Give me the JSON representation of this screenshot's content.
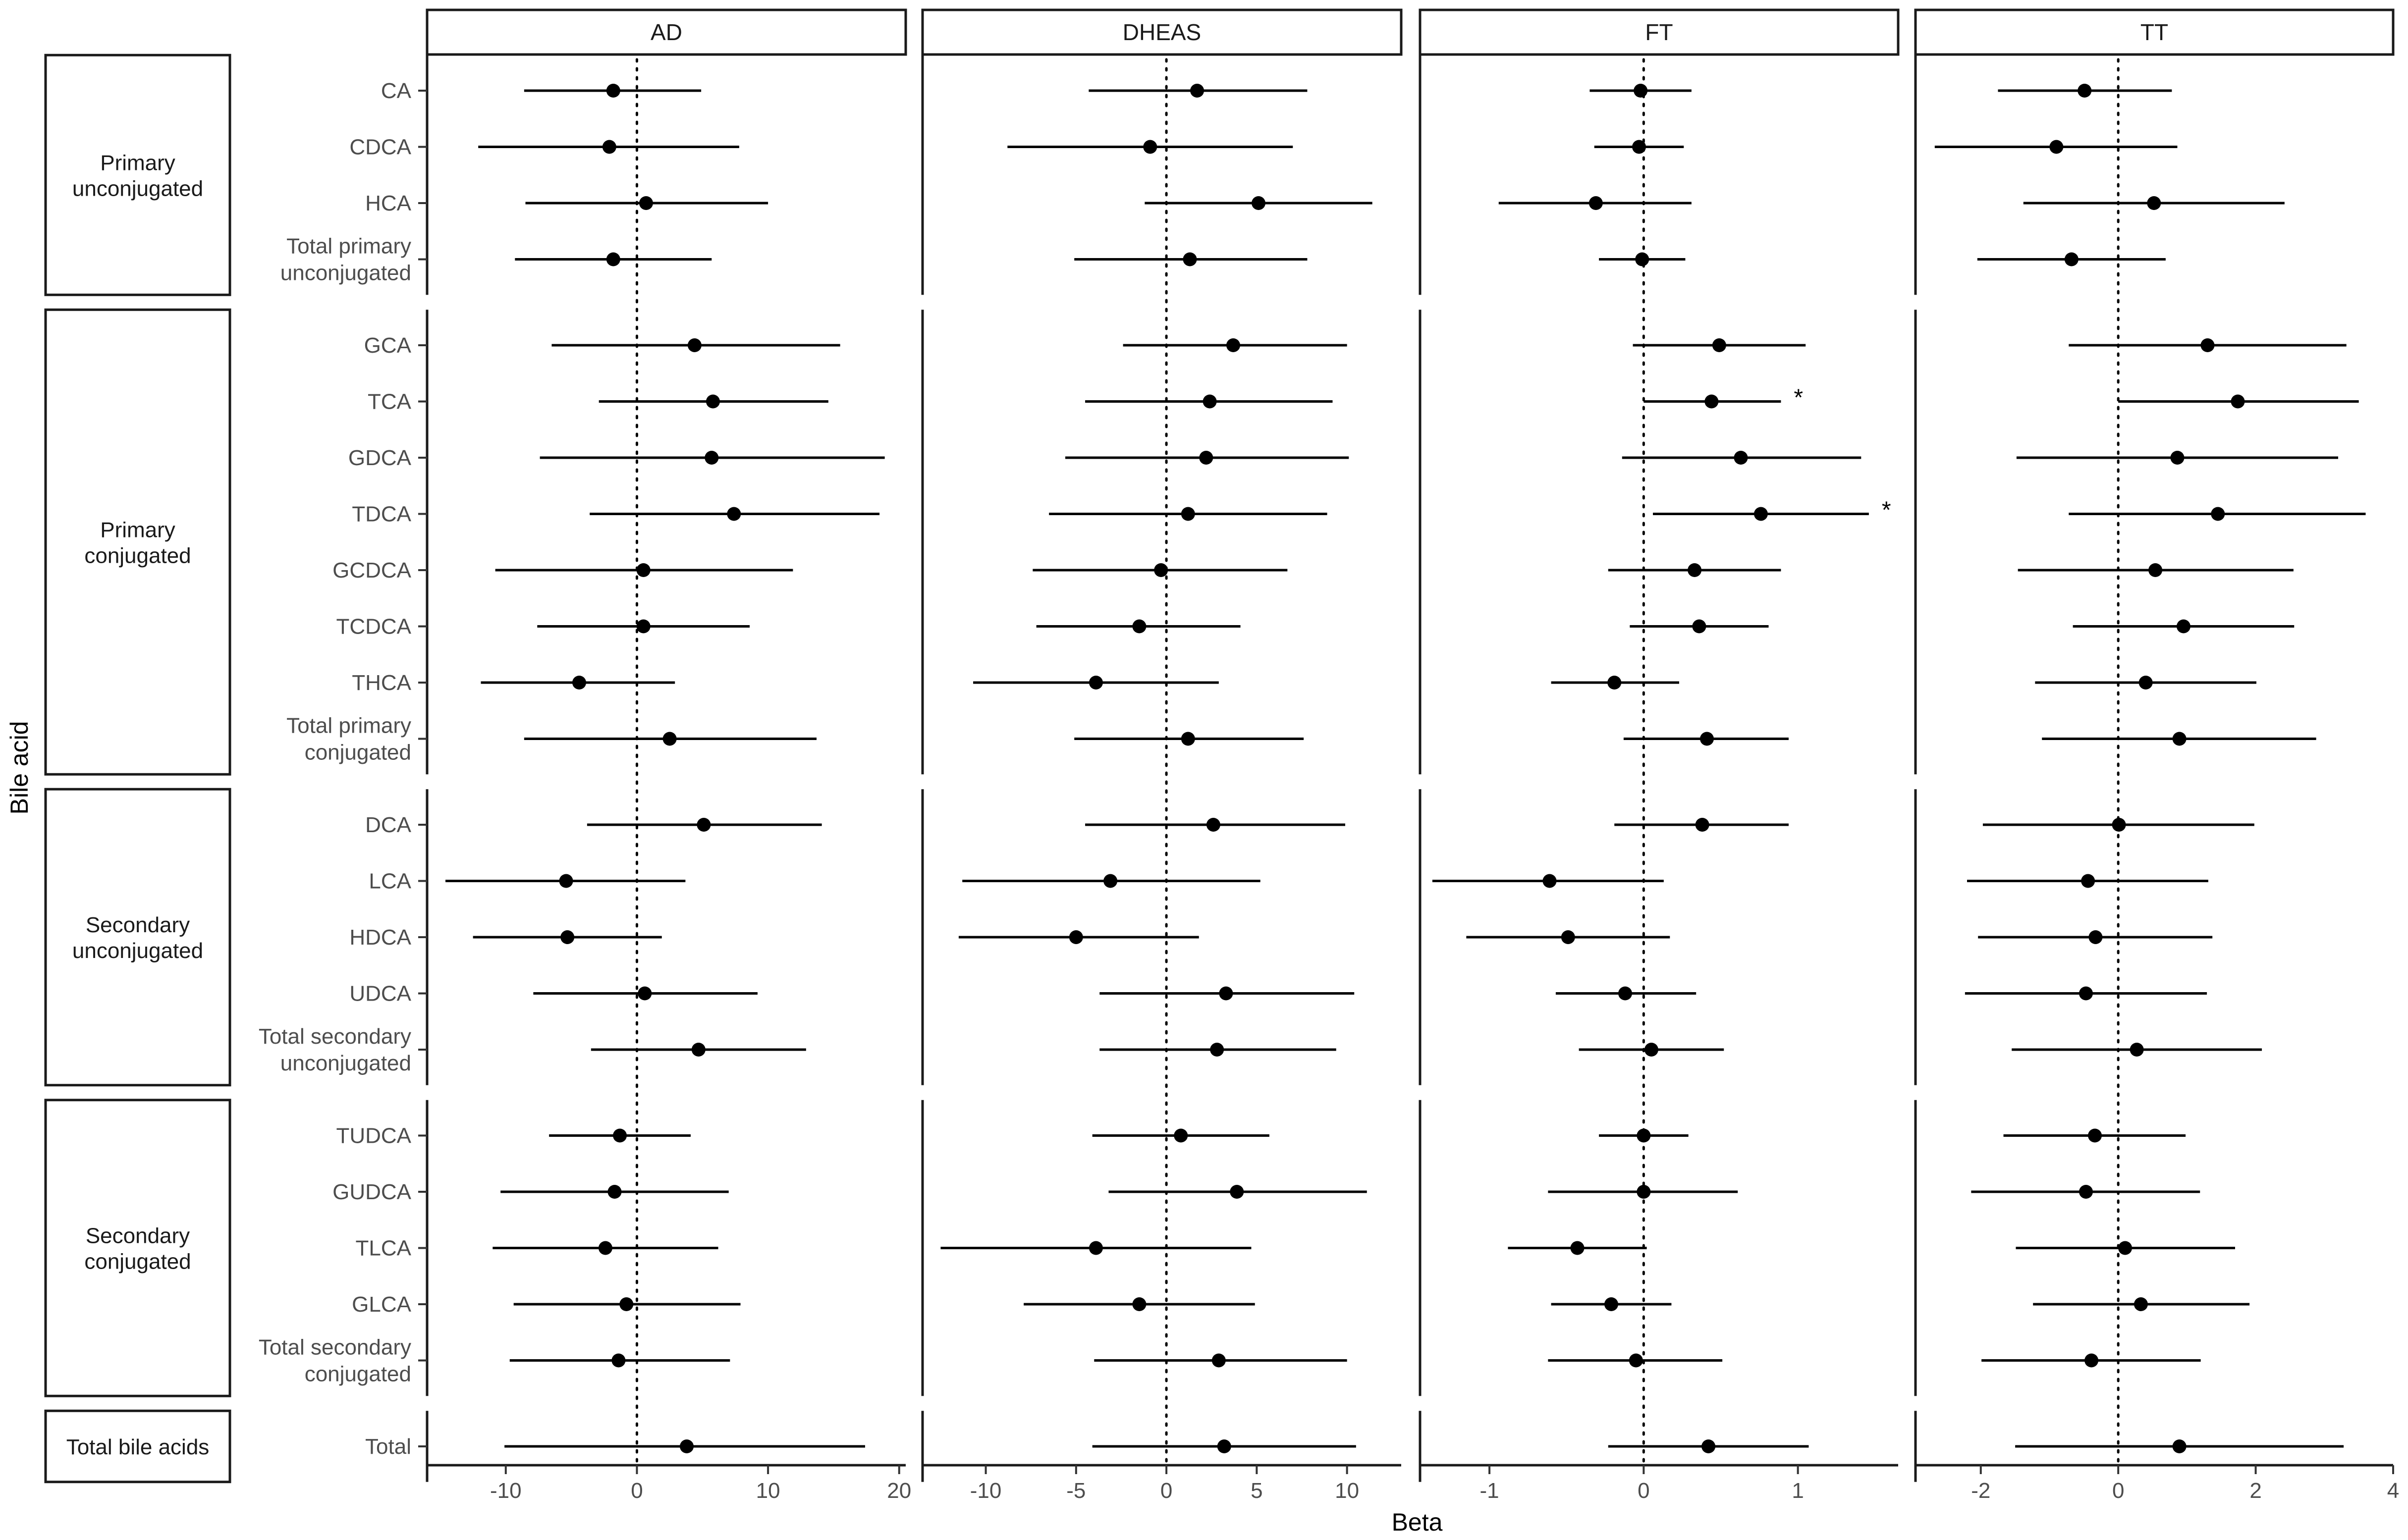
{
  "chart_data": {
    "type": "forest",
    "xlabel": "Beta",
    "ylabel": "Bile acid",
    "grid": false,
    "reference_line": 0,
    "groups": [
      {
        "label": "Primary\nunconjugated",
        "rows": [
          "CA",
          "CDCA",
          "HCA",
          "Total primary\nunconjugated"
        ]
      },
      {
        "label": "Primary\nconjugated",
        "rows": [
          "GCA",
          "TCA",
          "GDCA",
          "TDCA",
          "GCDCA",
          "TCDCA",
          "THCA",
          "Total primary\nconjugated"
        ]
      },
      {
        "label": "Secondary\nunconjugated",
        "rows": [
          "DCA",
          "LCA",
          "HDCA",
          "UDCA",
          "Total secondary\nunconjugated"
        ]
      },
      {
        "label": "Secondary\nconjugated",
        "rows": [
          "TUDCA",
          "GUDCA",
          "TLCA",
          "GLCA",
          "Total secondary\nconjugated"
        ]
      },
      {
        "label": "Total bile acids",
        "rows": [
          "Total"
        ]
      }
    ],
    "panels": [
      {
        "name": "AD",
        "xlim": [
          -16,
          20.5
        ],
        "ticks": [
          -10,
          0,
          10,
          20
        ],
        "tick_labels": [
          "-10",
          "0",
          "10",
          "20"
        ],
        "points": [
          {
            "est": -1.8,
            "lo": -8.6,
            "hi": 4.9,
            "sig": ""
          },
          {
            "est": -2.1,
            "lo": -12.1,
            "hi": 7.8,
            "sig": ""
          },
          {
            "est": 0.7,
            "lo": -8.5,
            "hi": 10.0,
            "sig": ""
          },
          {
            "est": -1.8,
            "lo": -9.3,
            "hi": 5.7,
            "sig": ""
          },
          {
            "est": 4.4,
            "lo": -6.5,
            "hi": 15.5,
            "sig": ""
          },
          {
            "est": 5.8,
            "lo": -2.9,
            "hi": 14.6,
            "sig": ""
          },
          {
            "est": 5.7,
            "lo": -7.4,
            "hi": 18.9,
            "sig": ""
          },
          {
            "est": 7.4,
            "lo": -3.6,
            "hi": 18.5,
            "sig": ""
          },
          {
            "est": 0.5,
            "lo": -10.8,
            "hi": 11.9,
            "sig": ""
          },
          {
            "est": 0.5,
            "lo": -7.6,
            "hi": 8.6,
            "sig": ""
          },
          {
            "est": -4.4,
            "lo": -11.9,
            "hi": 2.9,
            "sig": ""
          },
          {
            "est": 2.5,
            "lo": -8.6,
            "hi": 13.7,
            "sig": ""
          },
          {
            "est": 5.1,
            "lo": -3.8,
            "hi": 14.1,
            "sig": ""
          },
          {
            "est": -5.4,
            "lo": -14.6,
            "hi": 3.7,
            "sig": ""
          },
          {
            "est": -5.3,
            "lo": -12.5,
            "hi": 1.9,
            "sig": ""
          },
          {
            "est": 0.6,
            "lo": -7.9,
            "hi": 9.2,
            "sig": ""
          },
          {
            "est": 4.7,
            "lo": -3.5,
            "hi": 12.9,
            "sig": ""
          },
          {
            "est": -1.3,
            "lo": -6.7,
            "hi": 4.1,
            "sig": ""
          },
          {
            "est": -1.7,
            "lo": -10.4,
            "hi": 7.0,
            "sig": ""
          },
          {
            "est": -2.4,
            "lo": -11.0,
            "hi": 6.2,
            "sig": ""
          },
          {
            "est": -0.8,
            "lo": -9.4,
            "hi": 7.9,
            "sig": ""
          },
          {
            "est": -1.4,
            "lo": -9.7,
            "hi": 7.1,
            "sig": ""
          },
          {
            "est": 3.8,
            "lo": -10.1,
            "hi": 17.4,
            "sig": ""
          }
        ]
      },
      {
        "name": "DHEAS",
        "xlim": [
          -13.5,
          13
        ],
        "ticks": [
          -10,
          -5,
          0,
          5,
          10
        ],
        "tick_labels": [
          "-10",
          "-5",
          "0",
          "5",
          "10"
        ],
        "points": [
          {
            "est": 1.7,
            "lo": -4.3,
            "hi": 7.8,
            "sig": ""
          },
          {
            "est": -0.9,
            "lo": -8.8,
            "hi": 7.0,
            "sig": ""
          },
          {
            "est": 5.1,
            "lo": -1.2,
            "hi": 11.4,
            "sig": ""
          },
          {
            "est": 1.3,
            "lo": -5.1,
            "hi": 7.8,
            "sig": ""
          },
          {
            "est": 3.7,
            "lo": -2.4,
            "hi": 10.0,
            "sig": ""
          },
          {
            "est": 2.4,
            "lo": -4.5,
            "hi": 9.2,
            "sig": ""
          },
          {
            "est": 2.2,
            "lo": -5.6,
            "hi": 10.1,
            "sig": ""
          },
          {
            "est": 1.2,
            "lo": -6.5,
            "hi": 8.9,
            "sig": ""
          },
          {
            "est": -0.3,
            "lo": -7.4,
            "hi": 6.7,
            "sig": ""
          },
          {
            "est": -1.5,
            "lo": -7.2,
            "hi": 4.1,
            "sig": ""
          },
          {
            "est": -3.9,
            "lo": -10.7,
            "hi": 2.9,
            "sig": ""
          },
          {
            "est": 1.2,
            "lo": -5.1,
            "hi": 7.6,
            "sig": ""
          },
          {
            "est": 2.6,
            "lo": -4.5,
            "hi": 9.9,
            "sig": ""
          },
          {
            "est": -3.1,
            "lo": -11.3,
            "hi": 5.2,
            "sig": ""
          },
          {
            "est": -5.0,
            "lo": -11.5,
            "hi": 1.8,
            "sig": ""
          },
          {
            "est": 3.3,
            "lo": -3.7,
            "hi": 10.4,
            "sig": ""
          },
          {
            "est": 2.8,
            "lo": -3.7,
            "hi": 9.4,
            "sig": ""
          },
          {
            "est": 0.8,
            "lo": -4.1,
            "hi": 5.7,
            "sig": ""
          },
          {
            "est": 3.9,
            "lo": -3.2,
            "hi": 11.1,
            "sig": ""
          },
          {
            "est": -3.9,
            "lo": -12.5,
            "hi": 4.7,
            "sig": ""
          },
          {
            "est": -1.5,
            "lo": -7.9,
            "hi": 4.9,
            "sig": ""
          },
          {
            "est": 2.9,
            "lo": -4.0,
            "hi": 10.0,
            "sig": ""
          },
          {
            "est": 3.2,
            "lo": -4.1,
            "hi": 10.5,
            "sig": ""
          }
        ]
      },
      {
        "name": "FT",
        "xlim": [
          -1.45,
          1.65
        ],
        "ticks": [
          -1,
          0,
          1
        ],
        "tick_labels": [
          "-1",
          "0",
          "1"
        ],
        "points": [
          {
            "est": -0.02,
            "lo": -0.35,
            "hi": 0.31,
            "sig": ""
          },
          {
            "est": -0.03,
            "lo": -0.32,
            "hi": 0.26,
            "sig": ""
          },
          {
            "est": -0.31,
            "lo": -0.94,
            "hi": 0.31,
            "sig": ""
          },
          {
            "est": -0.01,
            "lo": -0.29,
            "hi": 0.27,
            "sig": ""
          },
          {
            "est": 0.49,
            "lo": -0.07,
            "hi": 1.05,
            "sig": ""
          },
          {
            "est": 0.44,
            "lo": 0.0,
            "hi": 0.89,
            "sig": "*"
          },
          {
            "est": 0.63,
            "lo": -0.14,
            "hi": 1.41,
            "sig": ""
          },
          {
            "est": 0.76,
            "lo": 0.06,
            "hi": 1.46,
            "sig": "*"
          },
          {
            "est": 0.33,
            "lo": -0.23,
            "hi": 0.89,
            "sig": ""
          },
          {
            "est": 0.36,
            "lo": -0.09,
            "hi": 0.81,
            "sig": ""
          },
          {
            "est": -0.19,
            "lo": -0.6,
            "hi": 0.23,
            "sig": ""
          },
          {
            "est": 0.41,
            "lo": -0.13,
            "hi": 0.94,
            "sig": ""
          },
          {
            "est": 0.38,
            "lo": -0.19,
            "hi": 0.94,
            "sig": ""
          },
          {
            "est": -0.61,
            "lo": -1.37,
            "hi": 0.13,
            "sig": ""
          },
          {
            "est": -0.49,
            "lo": -1.15,
            "hi": 0.17,
            "sig": ""
          },
          {
            "est": -0.12,
            "lo": -0.57,
            "hi": 0.34,
            "sig": ""
          },
          {
            "est": 0.05,
            "lo": -0.42,
            "hi": 0.52,
            "sig": ""
          },
          {
            "est": 0.0,
            "lo": -0.29,
            "hi": 0.29,
            "sig": ""
          },
          {
            "est": 0.0,
            "lo": -0.62,
            "hi": 0.61,
            "sig": ""
          },
          {
            "est": -0.43,
            "lo": -0.88,
            "hi": 0.02,
            "sig": ""
          },
          {
            "est": -0.21,
            "lo": -0.6,
            "hi": 0.18,
            "sig": ""
          },
          {
            "est": -0.05,
            "lo": -0.62,
            "hi": 0.51,
            "sig": ""
          },
          {
            "est": 0.42,
            "lo": -0.23,
            "hi": 1.07,
            "sig": ""
          }
        ]
      },
      {
        "name": "TT",
        "xlim": [
          -2.95,
          4.0
        ],
        "ticks": [
          -2,
          0,
          2,
          4
        ],
        "tick_labels": [
          "-2",
          "0",
          "2",
          "4"
        ],
        "points": [
          {
            "est": -0.49,
            "lo": -1.75,
            "hi": 0.78,
            "sig": ""
          },
          {
            "est": -0.9,
            "lo": -2.67,
            "hi": 0.86,
            "sig": ""
          },
          {
            "est": 0.52,
            "lo": -1.38,
            "hi": 2.42,
            "sig": ""
          },
          {
            "est": -0.68,
            "lo": -2.05,
            "hi": 0.69,
            "sig": ""
          },
          {
            "est": 1.3,
            "lo": -0.72,
            "hi": 3.32,
            "sig": ""
          },
          {
            "est": 1.74,
            "lo": 0.0,
            "hi": 3.5,
            "sig": ""
          },
          {
            "est": 0.86,
            "lo": -1.48,
            "hi": 3.2,
            "sig": ""
          },
          {
            "est": 1.45,
            "lo": -0.72,
            "hi": 3.6,
            "sig": ""
          },
          {
            "est": 0.54,
            "lo": -1.46,
            "hi": 2.55,
            "sig": ""
          },
          {
            "est": 0.95,
            "lo": -0.66,
            "hi": 2.56,
            "sig": ""
          },
          {
            "est": 0.4,
            "lo": -1.21,
            "hi": 2.01,
            "sig": ""
          },
          {
            "est": 0.89,
            "lo": -1.11,
            "hi": 2.88,
            "sig": ""
          },
          {
            "est": 0.01,
            "lo": -1.97,
            "hi": 1.98,
            "sig": ""
          },
          {
            "est": -0.44,
            "lo": -2.2,
            "hi": 1.31,
            "sig": ""
          },
          {
            "est": -0.33,
            "lo": -2.04,
            "hi": 1.37,
            "sig": ""
          },
          {
            "est": -0.47,
            "lo": -2.23,
            "hi": 1.29,
            "sig": ""
          },
          {
            "est": 0.27,
            "lo": -1.55,
            "hi": 2.09,
            "sig": ""
          },
          {
            "est": -0.34,
            "lo": -1.67,
            "hi": 0.98,
            "sig": ""
          },
          {
            "est": -0.47,
            "lo": -2.14,
            "hi": 1.19,
            "sig": ""
          },
          {
            "est": 0.1,
            "lo": -1.49,
            "hi": 1.7,
            "sig": ""
          },
          {
            "est": 0.33,
            "lo": -1.24,
            "hi": 1.91,
            "sig": ""
          },
          {
            "est": -0.39,
            "lo": -1.99,
            "hi": 1.2,
            "sig": ""
          },
          {
            "est": 0.89,
            "lo": -1.5,
            "hi": 3.28,
            "sig": ""
          }
        ]
      }
    ]
  }
}
